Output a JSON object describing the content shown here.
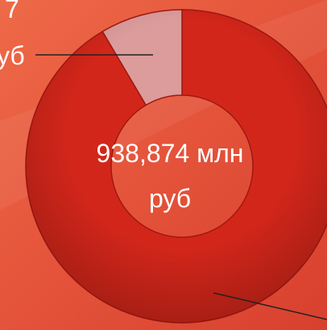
{
  "chart_data": {
    "type": "donut",
    "values": [
      91.5,
      8.5
    ],
    "colors": [
      "#d3261a",
      "#dc9c9c"
    ],
    "center_label": "938,874 млн руб",
    "annotations": [
      "7",
      "уб"
    ]
  }
}
